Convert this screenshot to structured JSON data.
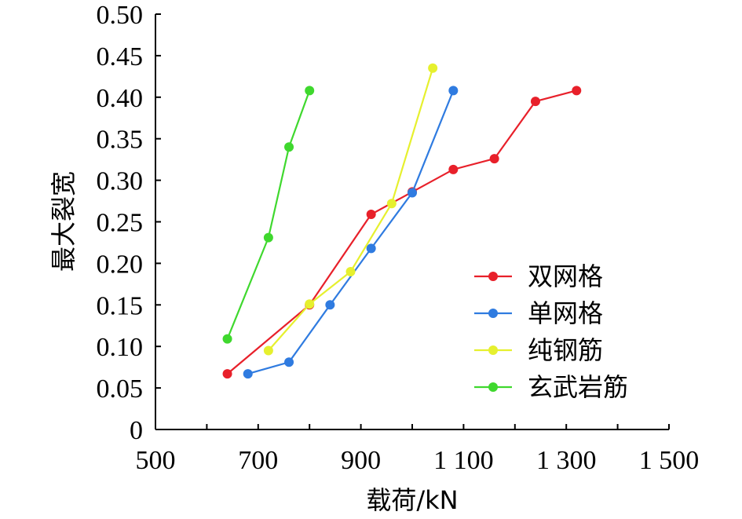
{
  "chart_data": {
    "type": "line",
    "title": "",
    "xlabel": "载荷/kN",
    "ylabel": "最大裂宽",
    "xlim": [
      500,
      1500
    ],
    "ylim": [
      0,
      0.5
    ],
    "grid": false,
    "legend_position": "right",
    "x_ticks": [
      500,
      700,
      900,
      1100,
      1300,
      1500
    ],
    "x_tick_labels": [
      "500",
      "700",
      "900",
      "1 100",
      "1 300",
      "1 500"
    ],
    "y_ticks": [
      0,
      0.05,
      0.1,
      0.15,
      0.2,
      0.25,
      0.3,
      0.35,
      0.4,
      0.45,
      0.5
    ],
    "y_tick_labels": [
      "0",
      "0.05",
      "0.10",
      "0.15",
      "0.20",
      "0.25",
      "0.30",
      "0.35",
      "0.40",
      "0.45",
      "0.50"
    ],
    "series": [
      {
        "name": "双网格",
        "color": "#e8202a",
        "x": [
          640,
          800,
          920,
          1000,
          1080,
          1160,
          1240,
          1320
        ],
        "y": [
          0.067,
          0.15,
          0.259,
          0.286,
          0.313,
          0.326,
          0.395,
          0.408
        ]
      },
      {
        "name": "单网格",
        "color": "#2f7be0",
        "x": [
          680,
          760,
          840,
          920,
          1000,
          1080
        ],
        "y": [
          0.067,
          0.081,
          0.15,
          0.218,
          0.285,
          0.408
        ]
      },
      {
        "name": "纯钢筋",
        "color": "#e6f02e",
        "x": [
          720,
          800,
          880,
          960,
          1040
        ],
        "y": [
          0.095,
          0.151,
          0.19,
          0.272,
          0.435
        ]
      },
      {
        "name": "玄武岩筋",
        "color": "#3fd82e",
        "x": [
          640,
          720,
          760,
          800
        ],
        "y": [
          0.109,
          0.231,
          0.34,
          0.408
        ]
      }
    ]
  }
}
